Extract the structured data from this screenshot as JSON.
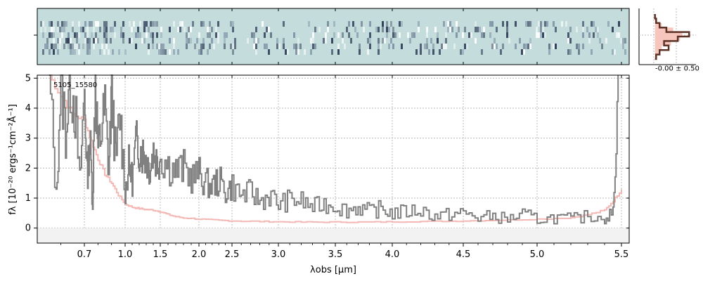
{
  "chart_data": [
    {
      "type": "heatmap",
      "panel": "2d-spectrum",
      "background_color": "#c5dcdc",
      "trace_color": "#2b3a55",
      "xlim": [
        0.5,
        5.55
      ],
      "rows": 6
    },
    {
      "type": "line",
      "panel": "profile",
      "xlim": [
        -0.7,
        1.8
      ],
      "annotation": "-0.00 ± 0.50",
      "fill_color": "#f6c6bc",
      "line_color": "#5c3326",
      "y": [
        0,
        1,
        2,
        3,
        4,
        5,
        6,
        7,
        8,
        9,
        10
      ],
      "model": [
        0.05,
        0.1,
        0.3,
        0.8,
        1.2,
        1.1,
        0.7,
        0.3,
        0.15,
        0.08,
        0.03
      ],
      "data": [
        0.0,
        0.05,
        0.2,
        0.5,
        1.5,
        1.0,
        0.4,
        0.6,
        0.2,
        0.05,
        0.0
      ]
    },
    {
      "type": "line",
      "panel": "1d-spectrum",
      "label": "5105_15580",
      "xlabel": "λobs [μm]",
      "ylabel": "fλ [10⁻²⁰ ergs⁻¹cm⁻²Å⁻¹]",
      "xlim": [
        0.5,
        5.55
      ],
      "ylim": [
        -0.5,
        5.1
      ],
      "x_scale": "wavelength (stretched)",
      "x_ticks": [
        0.7,
        1.0,
        1.5,
        2.0,
        2.5,
        3.0,
        3.5,
        4.0,
        4.5,
        5.0,
        5.5
      ],
      "x_tick_labels": [
        "0.7",
        "1.0",
        "1.5",
        "2.0",
        "2.5",
        "3.0",
        "3.5",
        "4.0",
        "4.5",
        "5.0",
        "5.5"
      ],
      "y_ticks": [
        0,
        1,
        2,
        3,
        4,
        5
      ],
      "y_tick_labels": [
        "0",
        "1",
        "2",
        "3",
        "4",
        "5"
      ],
      "grid": true,
      "series": [
        {
          "role": "flux",
          "color": "#808080",
          "x": [
            0.55,
            0.58,
            0.6,
            0.62,
            0.64,
            0.66,
            0.68,
            0.7,
            0.72,
            0.74,
            0.76,
            0.78,
            0.8,
            0.82,
            0.85,
            0.88,
            0.9,
            0.93,
            0.96,
            1.0,
            1.05,
            1.1,
            1.15,
            1.2,
            1.25,
            1.3,
            1.35,
            1.4,
            1.45,
            1.5,
            1.6,
            1.7,
            1.8,
            1.9,
            2.0,
            2.1,
            2.2,
            2.3,
            2.4,
            2.5,
            2.6,
            2.7,
            2.8,
            2.9,
            3.0,
            3.1,
            3.2,
            3.3,
            3.4,
            3.5,
            3.6,
            3.7,
            3.8,
            3.9,
            4.0,
            4.1,
            4.2,
            4.3,
            4.4,
            4.5,
            4.6,
            4.7,
            4.8,
            4.9,
            5.0,
            5.1,
            5.2,
            5.3,
            5.4,
            5.45,
            5.48
          ],
          "y": [
            5.1,
            1.0,
            5.1,
            3.2,
            5.1,
            4.0,
            1.5,
            4.6,
            1.7,
            3.0,
            0.8,
            5.1,
            2.6,
            3.1,
            4.0,
            1.8,
            4.8,
            2.2,
            3.8,
            1.2,
            2.1,
            1.6,
            2.8,
            2.7,
            2.5,
            2.3,
            2.0,
            2.6,
            2.2,
            2.4,
            2.1,
            1.9,
            2.0,
            1.7,
            1.8,
            1.5,
            1.4,
            1.6,
            1.2,
            1.4,
            1.1,
            1.2,
            0.9,
            1.1,
            0.8,
            0.95,
            0.9,
            0.7,
            0.8,
            0.75,
            0.6,
            0.7,
            0.55,
            0.65,
            0.5,
            0.55,
            0.6,
            0.4,
            0.45,
            0.5,
            0.35,
            0.4,
            0.3,
            0.45,
            0.3,
            0.35,
            0.3,
            0.4,
            0.35,
            0.5,
            5.1
          ]
        },
        {
          "role": "uncertainty",
          "color": "#f4b8b4",
          "x": [
            0.55,
            0.6,
            0.65,
            0.7,
            0.75,
            0.8,
            0.85,
            0.9,
            0.95,
            1.0,
            1.1,
            1.2,
            1.3,
            1.4,
            1.5,
            1.6,
            1.7,
            1.8,
            2.0,
            2.2,
            2.4,
            2.6,
            2.8,
            3.0,
            3.2,
            3.4,
            3.6,
            3.8,
            4.0,
            4.2,
            4.4,
            4.6,
            4.8,
            5.0,
            5.2,
            5.3,
            5.4,
            5.45,
            5.5
          ],
          "y": [
            5.1,
            4.4,
            3.8,
            3.6,
            2.9,
            2.3,
            1.8,
            1.5,
            1.1,
            0.8,
            0.7,
            0.65,
            0.62,
            0.6,
            0.55,
            0.45,
            0.38,
            0.34,
            0.3,
            0.27,
            0.25,
            0.23,
            0.22,
            0.21,
            0.2,
            0.2,
            0.2,
            0.2,
            0.21,
            0.22,
            0.23,
            0.25,
            0.27,
            0.3,
            0.35,
            0.45,
            0.6,
            0.9,
            1.3
          ]
        }
      ]
    }
  ]
}
